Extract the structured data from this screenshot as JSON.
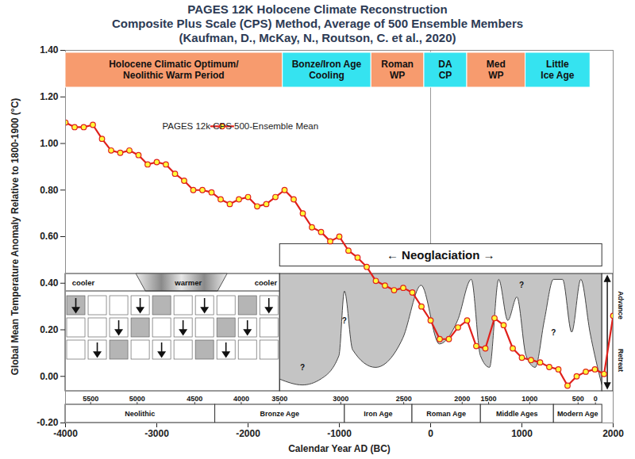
{
  "chart_data": {
    "type": "line",
    "title": "PAGES 12K Holocene Climate Reconstruction",
    "subtitle": [
      "Composite Plus Scale (CPS) Method, Average of 500 Ensemble Members",
      "(Kaufman, D., McKay, N., Routson, C. et al., 2020)"
    ],
    "x_label": "Calendar Year AD (BC)",
    "y_label": "Global Mean Temperature Anomaly Relative to 1800-1900 (°C)",
    "x": [
      -4000,
      -3900,
      -3800,
      -3700,
      -3600,
      -3500,
      -3400,
      -3300,
      -3200,
      -3100,
      -3000,
      -2900,
      -2800,
      -2700,
      -2600,
      -2500,
      -2400,
      -2300,
      -2200,
      -2100,
      -2000,
      -1900,
      -1800,
      -1700,
      -1600,
      -1500,
      -1400,
      -1300,
      -1200,
      -1100,
      -1000,
      -900,
      -800,
      -700,
      -600,
      -500,
      -400,
      -300,
      -200,
      -100,
      0,
      100,
      200,
      300,
      400,
      500,
      600,
      700,
      800,
      900,
      1000,
      1100,
      1200,
      1300,
      1400,
      1500,
      1600,
      1700,
      1800,
      1900,
      2000
    ],
    "series": [
      {
        "name": "PAGES 12k CPS 500-Ensemble Mean",
        "color": "#e0201b",
        "marker": "circle",
        "line_style": "solid",
        "values": [
          1.09,
          1.07,
          1.07,
          1.08,
          1.02,
          0.97,
          0.96,
          0.97,
          0.95,
          0.91,
          0.92,
          0.91,
          0.87,
          0.84,
          0.8,
          0.8,
          0.79,
          0.76,
          0.74,
          0.76,
          0.77,
          0.73,
          0.74,
          0.77,
          0.8,
          0.76,
          0.7,
          0.64,
          0.62,
          0.58,
          0.6,
          0.54,
          0.51,
          0.47,
          0.41,
          0.39,
          0.37,
          0.38,
          0.36,
          0.3,
          0.24,
          0.16,
          0.16,
          0.21,
          0.24,
          0.13,
          0.12,
          0.25,
          0.22,
          0.12,
          0.08,
          0.07,
          0.06,
          0.04,
          0.03,
          -0.04,
          0.0,
          0.02,
          0.03,
          0.01,
          0.26
        ]
      }
    ],
    "xlim": [
      -4000,
      2000
    ],
    "xticks": [
      -4000,
      -3000,
      -2000,
      -1000,
      0,
      1000,
      2000
    ],
    "ylim": [
      -0.2,
      1.4
    ],
    "yticks": [
      {
        "value": -0.2,
        "label": "-0.20"
      },
      {
        "value": 0,
        "label": "0.00"
      },
      {
        "value": 0.2,
        "label": "0.20"
      },
      {
        "value": 0.4,
        "label": "0.40"
      },
      {
        "value": 0.6,
        "label": "0.60"
      },
      {
        "value": 0.8,
        "label": "0.80"
      },
      {
        "value": 1.0,
        "label": "1.00"
      },
      {
        "value": 1.2,
        "label": "1.20"
      },
      {
        "value": 1.4,
        "label": "1.40"
      }
    ],
    "grid": false,
    "legend": "top-left",
    "vertical_line_x": 0,
    "periods": [
      {
        "label": "Holocene Climatic Optimum/\nNeolithic Warm Period",
        "start": -4000,
        "end": -1620,
        "color": "#f79b6e"
      },
      {
        "label": "Bonze/Iron Age\nCooling",
        "start": -1620,
        "end": -650,
        "color": "#35e3f0"
      },
      {
        "label": "Roman\nWP",
        "start": -650,
        "end": -70,
        "color": "#f79b6e"
      },
      {
        "label": "DA\nCP",
        "start": -70,
        "end": 400,
        "color": "#35e3f0"
      },
      {
        "label": "Med\nWP",
        "start": 400,
        "end": 1040,
        "color": "#f79b6e"
      },
      {
        "label": "Little\nIce Age",
        "start": 1040,
        "end": 1750,
        "color": "#35e3f0"
      }
    ],
    "inset": {
      "header": {
        "text": "← Neoglaciation →",
        "start": -1650,
        "end": 1880
      },
      "schematic": {
        "start": -4000,
        "end": -1650,
        "labels": [
          {
            "text": "cooler",
            "x": -3800
          },
          {
            "text": "warmer",
            "x": -2650
          },
          {
            "text": "cooler",
            "x": -1800
          }
        ]
      },
      "glacier": {
        "x": [
          -1650,
          -1400,
          -1200,
          -1000,
          -940,
          -850,
          -600,
          -300,
          -100,
          100,
          300,
          450,
          550,
          650,
          750,
          850,
          950,
          1050,
          1150,
          1250,
          1350,
          1450,
          1550,
          1650,
          1750,
          1880
        ],
        "values": [
          0.1,
          0.05,
          0.1,
          0.3,
          0.85,
          0.35,
          0.2,
          0.45,
          0.9,
          0.4,
          0.6,
          0.95,
          0.3,
          0.2,
          0.95,
          0.6,
          0.8,
          0.3,
          0.2,
          0.6,
          0.95,
          0.95,
          0.5,
          0.95,
          0.5,
          0.05
        ],
        "ylim": [
          0,
          1
        ],
        "question_marks": [
          {
            "text": "?",
            "x": -1400,
            "level": 0.2
          },
          {
            "text": "?",
            "x": -940,
            "level": 0.6
          },
          {
            "text": "?",
            "x": 1000,
            "level": 0.9
          },
          {
            "text": "?",
            "x": 1350,
            "level": 0.5
          }
        ]
      },
      "advance_label": "Advance",
      "retreat_label": "Retreat",
      "ticks": [
        {
          "value": -3720,
          "label": "5500"
        },
        {
          "value": -3210,
          "label": "5000"
        },
        {
          "value": -2580,
          "label": "4500"
        },
        {
          "value": -2070,
          "label": "4000"
        },
        {
          "value": -1650,
          "label": "3500"
        },
        {
          "value": -980,
          "label": "3000"
        },
        {
          "value": -290,
          "label": "2500"
        },
        {
          "value": 350,
          "label": "2000"
        },
        {
          "value": 640,
          "label": "1500"
        },
        {
          "value": 1090,
          "label": "1000"
        },
        {
          "value": 1620,
          "label": "500"
        },
        {
          "value": 1810,
          "label": "0"
        }
      ],
      "eras": [
        {
          "label": "Neolithic",
          "start": -4000,
          "end": -2360
        },
        {
          "label": "Bronze Age",
          "start": -2360,
          "end": -940
        },
        {
          "label": "Iron Age",
          "start": -940,
          "end": -200
        },
        {
          "label": "Roman Age",
          "start": -200,
          "end": 550
        },
        {
          "label": "Middle Ages",
          "start": 550,
          "end": 1350
        },
        {
          "label": "Modern Age",
          "start": 1350,
          "end": 1880
        }
      ]
    }
  }
}
